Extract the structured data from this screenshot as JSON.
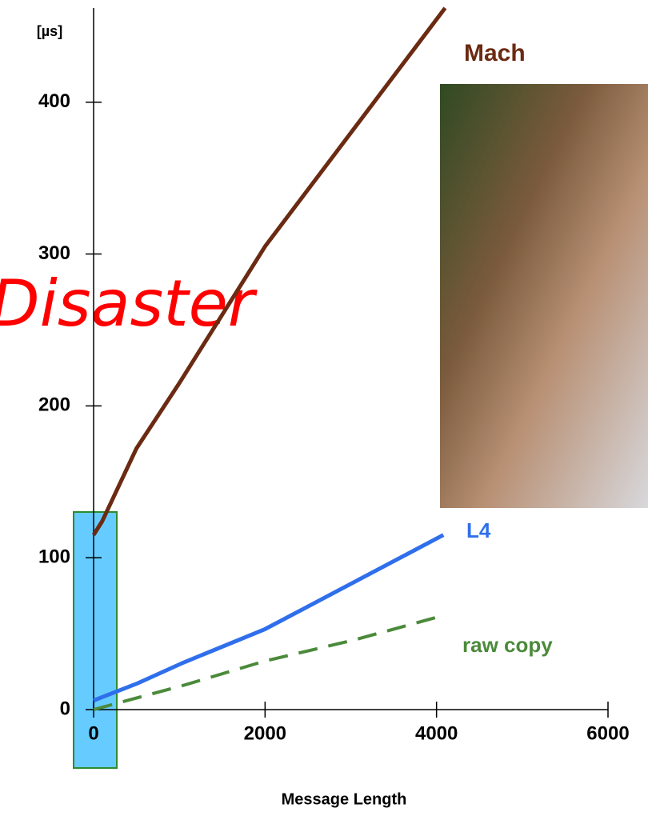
{
  "chart_data": {
    "type": "line",
    "y_label": "[µs]",
    "x_label": "Message Length",
    "annotation": "Disaster",
    "xlim": [
      0,
      6000
    ],
    "ylim": [
      0,
      462
    ],
    "xticks": [
      0,
      2000,
      4000,
      6000
    ],
    "yticks": [
      0,
      100,
      200,
      300,
      400
    ],
    "series": [
      {
        "name": "Mach",
        "color": "#6b2a12",
        "dash": false,
        "x": [
          0,
          100,
          500,
          1000,
          2000,
          4100
        ],
        "values": [
          115,
          124,
          172,
          215,
          305,
          462
        ]
      },
      {
        "name": "L4",
        "color": "#2f6fec",
        "dash": false,
        "x": [
          0,
          500,
          1050,
          2000,
          4080
        ],
        "values": [
          6,
          17,
          31,
          53,
          115
        ]
      },
      {
        "name": "raw copy",
        "color": "#4b8a3a",
        "dash": true,
        "x": [
          0,
          1050,
          2000,
          3050,
          4080
        ],
        "values": [
          0,
          16,
          32,
          46,
          62
        ]
      }
    ]
  }
}
